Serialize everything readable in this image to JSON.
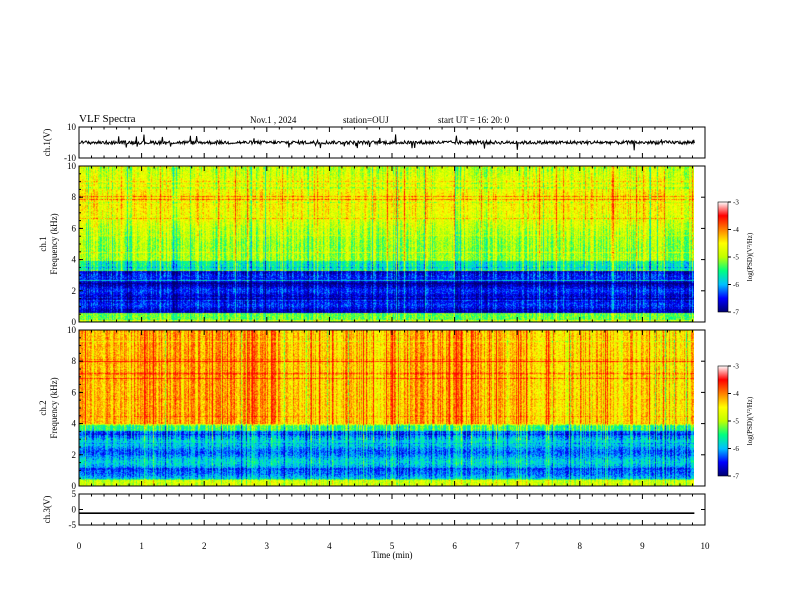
{
  "header": {
    "title": "VLF Spectra",
    "date": "Nov.1 , 2024",
    "station": "station=OUJ",
    "start": "start UT = 16: 20: 0"
  },
  "colors": {
    "colormap": [
      "#000070",
      "#0000ff",
      "#00c0ff",
      "#00ff80",
      "#c0ff00",
      "#ffff00",
      "#ff8000",
      "#ff0000",
      "#ffffff"
    ]
  },
  "chart_data": [
    {
      "type": "line",
      "ylabel": "ch.1(V)",
      "ylim": [
        -10,
        10
      ],
      "yticks": [
        "10",
        "-10"
      ],
      "x": [
        0,
        9.83
      ],
      "series": [
        {
          "values": [
            0,
            0
          ]
        }
      ]
    },
    {
      "type": "heatmap",
      "ylabel": "ch.1 Frequency (kHz)",
      "ylim": [
        0,
        10
      ],
      "yticks": [
        "0",
        "2",
        "4",
        "6",
        "8",
        "10"
      ],
      "colorbar": {
        "label": "log(PSD)(V²/Hz)",
        "ticks": [
          "-3",
          "-4",
          "-5",
          "-6",
          "-7"
        ],
        "range": [
          -7,
          -3
        ]
      }
    },
    {
      "type": "heatmap",
      "ylabel": "ch.2 Frequency (kHz)",
      "ylim": [
        0,
        10
      ],
      "yticks": [
        "0",
        "2",
        "4",
        "6",
        "8",
        "10"
      ],
      "colorbar": {
        "label": "log(PSD)(V²/Hz)",
        "ticks": [
          "-3",
          "-4",
          "-5",
          "-6",
          "-7"
        ],
        "range": [
          -7,
          -3
        ]
      }
    },
    {
      "type": "line",
      "ylabel": "ch.3(V)",
      "ylim": [
        -5,
        5
      ],
      "yticks": [
        "5",
        "0",
        "-5"
      ],
      "x": [
        0,
        9.83
      ],
      "series": [
        {
          "values": [
            -1.2,
            -1.2
          ]
        }
      ]
    }
  ],
  "xaxis": {
    "xlabel": "Time (min)",
    "xlim": [
      0,
      10
    ],
    "ticks": [
      "0",
      "1",
      "2",
      "3",
      "4",
      "5",
      "6",
      "7",
      "8",
      "9",
      "10"
    ]
  }
}
